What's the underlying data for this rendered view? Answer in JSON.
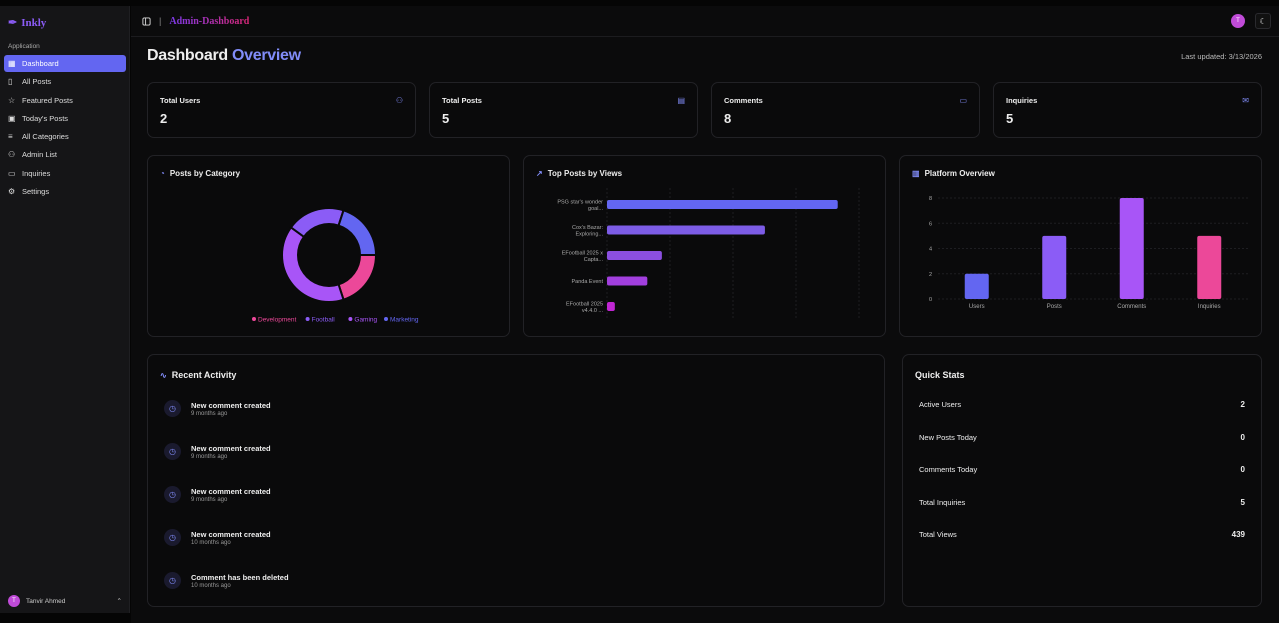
{
  "brand": "Inkly",
  "sidebar": {
    "group": "Application",
    "items": [
      {
        "label": "Dashboard",
        "icon": "grid-icon",
        "active": true
      },
      {
        "label": "All Posts",
        "icon": "clipboard-icon"
      },
      {
        "label": "Featured Posts",
        "icon": "star-icon"
      },
      {
        "label": "Today's Posts",
        "icon": "calendar-icon"
      },
      {
        "label": "All Categories",
        "icon": "list-icon"
      },
      {
        "label": "Admin List",
        "icon": "users-icon"
      },
      {
        "label": "Inquiries",
        "icon": "inbox-icon"
      },
      {
        "label": "Settings",
        "icon": "gear-icon"
      }
    ],
    "user": {
      "initial": "T",
      "name": "Tanvir Ahmed"
    }
  },
  "header": {
    "breadcrumb": "Admin-Dashboard",
    "avatar_initial": "T"
  },
  "page": {
    "title_a": "Dashboard",
    "title_b": "Overview",
    "last_updated": "Last updated: 3/13/2026"
  },
  "stats": [
    {
      "label": "Total Users",
      "value": "2",
      "icon": "users-icon"
    },
    {
      "label": "Total Posts",
      "value": "5",
      "icon": "file-icon"
    },
    {
      "label": "Comments",
      "value": "8",
      "icon": "message-icon"
    },
    {
      "label": "Inquiries",
      "value": "5",
      "icon": "mail-icon"
    }
  ],
  "colors": {
    "accent": "#6366f1",
    "development": "#ec4899",
    "football": "#8b5cf6",
    "gaming": "#a855f7",
    "marketing": "#6366f1"
  },
  "chart_data": [
    {
      "type": "pie",
      "title": "Posts by Category",
      "categories": [
        "Development",
        "Gaming",
        "Football",
        "Marketing"
      ],
      "values": [
        1,
        2,
        1,
        1
      ],
      "colors": [
        "#ec4899",
        "#a855f7",
        "#8b5cf6",
        "#6366f1"
      ],
      "legend": [
        "Development",
        "Football",
        "Gaming",
        "Marketing"
      ],
      "legend_colors": [
        "#ec4899",
        "#8b5cf6",
        "#a855f7",
        "#6366f1"
      ],
      "legend_placement": "bottom"
    },
    {
      "type": "bar",
      "orientation": "horizontal",
      "title": "Top Posts by Views",
      "categories": [
        [
          "PSG star's wonder",
          "goal..."
        ],
        [
          "Cox's Bazar:",
          "Exploring..."
        ],
        [
          "EFootball 2025 x",
          "Capta..."
        ],
        [
          "Panda Event"
        ],
        [
          "EFootball 2025",
          "v4.4.0 ..."
        ]
      ],
      "values": [
        206,
        141,
        49,
        36,
        7
      ],
      "colors": [
        "#6366f1",
        "#7c5ce6",
        "#8b4fe0",
        "#a23fde",
        "#c026d3"
      ],
      "grid": true
    },
    {
      "type": "bar",
      "title": "Platform Overview",
      "categories": [
        "Users",
        "Posts",
        "Comments",
        "Inquiries"
      ],
      "values": [
        2,
        5,
        8,
        5
      ],
      "colors": [
        "#6366f1",
        "#8b5cf6",
        "#a855f7",
        "#ec4899"
      ],
      "yticks": [
        0,
        2,
        4,
        6,
        8
      ],
      "ylim": [
        0,
        8
      ],
      "grid": true
    }
  ],
  "activity": {
    "title": "Recent Activity",
    "items": [
      {
        "text": "New comment created",
        "time": "9 months ago"
      },
      {
        "text": "New comment created",
        "time": "9 months ago"
      },
      {
        "text": "New comment created",
        "time": "9 months ago"
      },
      {
        "text": "New comment created",
        "time": "10 months ago"
      },
      {
        "text": "Comment has been deleted",
        "time": "10 months ago"
      }
    ]
  },
  "quick": {
    "title": "Quick Stats",
    "rows": [
      {
        "label": "Active Users",
        "value": "2"
      },
      {
        "label": "New Posts Today",
        "value": "0"
      },
      {
        "label": "Comments Today",
        "value": "0"
      },
      {
        "label": "Total Inquiries",
        "value": "5"
      },
      {
        "label": "Total Views",
        "value": "439"
      }
    ]
  }
}
